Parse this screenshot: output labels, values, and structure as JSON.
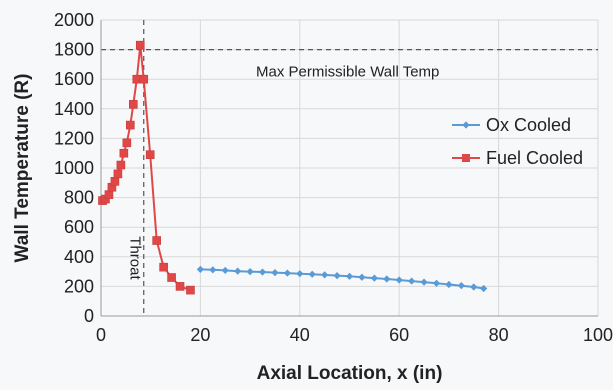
{
  "chart_data": {
    "type": "line",
    "xlabel": "Axial Location, x (in)",
    "ylabel": "Wall Temperature (R)",
    "xlim": [
      0,
      100
    ],
    "ylim": [
      0,
      2000
    ],
    "x_ticks": [
      "0",
      "20",
      "40",
      "60",
      "80",
      "100"
    ],
    "y_ticks": [
      "0",
      "200",
      "400",
      "600",
      "800",
      "1000",
      "1200",
      "1400",
      "1600",
      "1800",
      "2000"
    ],
    "grid": true,
    "legend_position": "right",
    "series": [
      {
        "name": "Ox Cooled",
        "color": "#5b9bd5",
        "marker": "diamond",
        "x": [
          20,
          22.5,
          25,
          27.5,
          30,
          32.5,
          35,
          37.5,
          40,
          42.5,
          45,
          47.5,
          50,
          52.5,
          55,
          57.5,
          60,
          62.5,
          65,
          67.5,
          70,
          72.5,
          75,
          77
        ],
        "y": [
          315,
          312,
          308,
          303,
          300,
          297,
          293,
          290,
          286,
          282,
          278,
          273,
          268,
          262,
          256,
          250,
          243,
          236,
          229,
          221,
          213,
          205,
          196,
          186
        ]
      },
      {
        "name": "Fuel Cooled",
        "color": "#e04848",
        "marker": "square",
        "x": [
          0.3,
          0.9,
          1.6,
          2.2,
          2.8,
          3.4,
          4.0,
          4.6,
          5.2,
          5.9,
          6.5,
          7.2,
          7.9,
          8.6,
          9.9,
          11.2,
          12.6,
          14.2,
          15.9,
          18.0
        ],
        "y": [
          780,
          790,
          820,
          870,
          910,
          960,
          1020,
          1100,
          1170,
          1290,
          1430,
          1600,
          1830,
          1600,
          1090,
          510,
          330,
          260,
          200,
          175
        ]
      }
    ],
    "annotations": [
      {
        "text": "Max Permissible Wall Temp",
        "type": "hline",
        "y": 1800
      },
      {
        "text": "Throat",
        "type": "vline",
        "x": 8.6
      }
    ]
  }
}
